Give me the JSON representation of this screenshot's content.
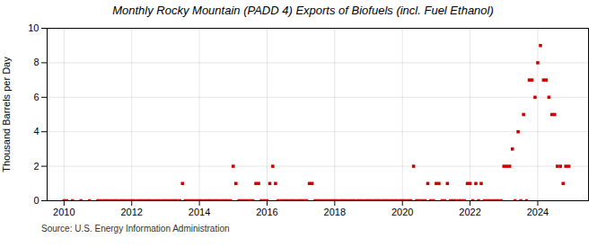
{
  "chart_data": {
    "type": "scatter",
    "title": "Monthly Rocky Mountain (PADD 4) Exports of Biofuels (incl. Fuel Ethanol)",
    "ylabel": "Thousand Barrels per Day",
    "source": "Source: U.S. Energy Information Administration",
    "color": "#cc0000",
    "marker": "square",
    "grid": true,
    "xlim": [
      2009.5,
      2025.5
    ],
    "ylim": [
      0,
      10
    ],
    "xticks": [
      2010,
      2012,
      2014,
      2016,
      2018,
      2020,
      2022,
      2024
    ],
    "yticks": [
      0,
      2,
      4,
      6,
      8,
      10
    ],
    "x": [
      2010.0,
      2010.08,
      2010.25,
      2010.5,
      2010.75,
      2011.0,
      2011.08,
      2011.17,
      2011.25,
      2011.33,
      2011.42,
      2011.5,
      2011.58,
      2011.67,
      2011.75,
      2011.83,
      2011.92,
      2012.0,
      2012.08,
      2012.17,
      2012.25,
      2012.33,
      2012.42,
      2012.5,
      2012.58,
      2012.67,
      2012.75,
      2012.83,
      2012.92,
      2013.0,
      2013.08,
      2013.17,
      2013.25,
      2013.33,
      2013.42,
      2013.5,
      2013.58,
      2013.67,
      2013.75,
      2013.83,
      2013.92,
      2014.0,
      2014.08,
      2014.17,
      2014.25,
      2014.33,
      2014.42,
      2014.5,
      2014.58,
      2014.67,
      2014.75,
      2014.83,
      2014.92,
      2015.0,
      2015.08,
      2015.17,
      2015.25,
      2015.33,
      2015.42,
      2015.5,
      2015.58,
      2015.67,
      2015.75,
      2015.83,
      2015.92,
      2016.0,
      2016.08,
      2016.17,
      2016.25,
      2016.33,
      2016.42,
      2016.5,
      2016.58,
      2016.67,
      2016.75,
      2016.83,
      2016.92,
      2017.0,
      2017.08,
      2017.17,
      2017.25,
      2017.33,
      2017.42,
      2017.5,
      2017.58,
      2017.67,
      2017.75,
      2017.83,
      2017.92,
      2018.0,
      2018.08,
      2018.17,
      2018.25,
      2018.33,
      2018.42,
      2018.5,
      2018.58,
      2018.67,
      2018.75,
      2018.83,
      2018.92,
      2019.0,
      2019.08,
      2019.17,
      2019.25,
      2019.33,
      2019.42,
      2019.5,
      2019.58,
      2019.67,
      2019.75,
      2019.83,
      2019.92,
      2020.0,
      2020.08,
      2020.17,
      2020.25,
      2020.33,
      2020.42,
      2020.5,
      2020.58,
      2020.67,
      2020.75,
      2020.83,
      2020.92,
      2021.0,
      2021.08,
      2021.17,
      2021.25,
      2021.33,
      2021.42,
      2021.5,
      2021.58,
      2021.67,
      2021.75,
      2021.83,
      2021.92,
      2022.0,
      2022.08,
      2022.17,
      2022.25,
      2022.33,
      2022.42,
      2022.5,
      2022.58,
      2022.67,
      2022.75,
      2022.83,
      2022.92,
      2023.0,
      2023.08,
      2023.17,
      2023.25,
      2023.33,
      2023.42,
      2023.5,
      2023.58,
      2023.67,
      2023.75,
      2023.83,
      2023.92,
      2024.0,
      2024.08,
      2024.17,
      2024.25,
      2024.33,
      2024.42,
      2024.5,
      2024.58,
      2024.67,
      2024.75,
      2024.83,
      2024.92
    ],
    "values": [
      0.0,
      0.0,
      0.0,
      0.0,
      0.0,
      0.0,
      0.0,
      0.0,
      0.0,
      0.0,
      0.0,
      0.0,
      0.0,
      0.0,
      0.0,
      0.0,
      0.0,
      0.0,
      0.0,
      0.0,
      0.0,
      0.0,
      0.0,
      0.0,
      0.0,
      0.0,
      0.0,
      0.0,
      0.0,
      0.0,
      0.0,
      0.0,
      0.0,
      0.0,
      0.0,
      1.0,
      0.0,
      0.0,
      0.0,
      0.0,
      0.0,
      0.0,
      0.0,
      0.0,
      0.0,
      0.0,
      0.0,
      0.0,
      0.0,
      0.0,
      0.0,
      0.0,
      0.0,
      2.0,
      1.0,
      0.0,
      0.0,
      0.0,
      0.0,
      0.0,
      0.0,
      1.0,
      1.0,
      0.0,
      0.0,
      0.0,
      1.0,
      2.0,
      1.0,
      0.0,
      0.0,
      0.0,
      0.0,
      0.0,
      0.0,
      0.0,
      0.0,
      0.0,
      0.0,
      0.0,
      1.0,
      1.0,
      0.0,
      0.0,
      0.0,
      0.0,
      0.0,
      0.0,
      0.0,
      0.0,
      0.0,
      0.0,
      0.0,
      0.0,
      0.0,
      0.0,
      0.0,
      0.0,
      0.0,
      0.0,
      0.0,
      0.0,
      0.0,
      0.0,
      0.0,
      0.0,
      0.0,
      0.0,
      0.0,
      0.0,
      0.0,
      0.0,
      0.0,
      0.0,
      0.0,
      0.0,
      0.0,
      2.0,
      0.0,
      0.0,
      0.0,
      0.0,
      1.0,
      0.0,
      0.0,
      1.0,
      1.0,
      0.0,
      0.0,
      1.0,
      0.0,
      0.0,
      0.0,
      0.0,
      0.0,
      0.0,
      1.0,
      1.0,
      0.0,
      1.0,
      0.0,
      1.0,
      0.0,
      0.0,
      0.0,
      0.0,
      0.0,
      0.0,
      0.0,
      2.0,
      2.0,
      2.0,
      3.0,
      0.0,
      4.0,
      0.0,
      5.0,
      0.0,
      7.0,
      7.0,
      6.0,
      8.0,
      9.0,
      7.0,
      7.0,
      6.0,
      5.0,
      5.0,
      2.0,
      2.0,
      1.0,
      2.0,
      2.0
    ]
  }
}
